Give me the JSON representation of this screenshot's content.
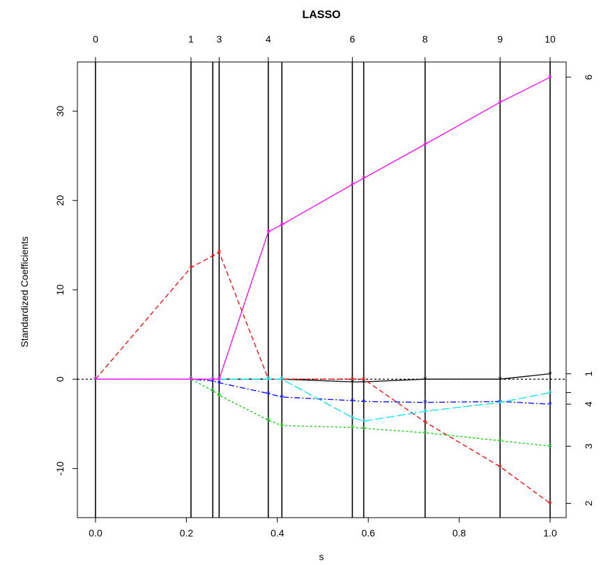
{
  "chart_data": {
    "type": "line",
    "title": "LASSO",
    "xlabel": "s",
    "ylabel": "Standardized Coefficients",
    "xlim": [
      0,
      1
    ],
    "ylim": [
      -15.5,
      35.5
    ],
    "x_ticks": [
      "0.0",
      "0.2",
      "0.4",
      "0.6",
      "0.8",
      "1.0"
    ],
    "y_ticks": [
      "-10",
      "0",
      "10",
      "20",
      "30"
    ],
    "grid": false,
    "legend": "none",
    "steps": {
      "x": [
        0.0,
        0.21,
        0.258,
        0.272,
        0.38,
        0.41,
        0.565,
        0.59,
        0.725,
        0.89,
        1.0
      ],
      "top_labels": [
        "0",
        "1",
        "",
        "3",
        "4",
        "",
        "6",
        "",
        "8",
        "9",
        "10"
      ]
    },
    "series": [
      {
        "color": "#000000",
        "dash": "",
        "y": [
          0,
          0,
          0,
          0,
          0,
          0,
          -0.3,
          -0.3,
          0,
          0,
          0.6
        ],
        "right_label": "1"
      },
      {
        "color": "#ff0000",
        "dash": "7,4",
        "y": [
          0,
          12.5,
          13.8,
          14.2,
          0,
          0,
          0,
          0,
          -4.8,
          -9.8,
          -13.9
        ],
        "right_label": "2"
      },
      {
        "color": "#00cd00",
        "dash": "3,3",
        "y": [
          0,
          0,
          -1.3,
          -1.8,
          -4.6,
          -5.2,
          -5.4,
          -5.5,
          -6.0,
          -6.9,
          -7.5
        ],
        "right_label": "3"
      },
      {
        "color": "#0000ff",
        "dash": "8,3,2,3",
        "y": [
          0,
          0,
          -0.2,
          -0.4,
          -1.6,
          -2.0,
          -2.4,
          -2.5,
          -2.6,
          -2.5,
          -2.8
        ],
        "right_label": "4"
      },
      {
        "color": "#00e5ee",
        "dash": "12,4",
        "y": [
          0,
          0,
          0,
          0,
          0,
          0,
          -4.3,
          -4.7,
          -3.6,
          -2.6,
          -1.5
        ],
        "right_label": ""
      },
      {
        "color": "#ff00ff",
        "dash": "",
        "y": [
          0,
          0,
          0,
          0,
          16.5,
          17.3,
          21.8,
          22.5,
          26.3,
          31.0,
          33.8
        ],
        "right_label": "6"
      }
    ]
  }
}
